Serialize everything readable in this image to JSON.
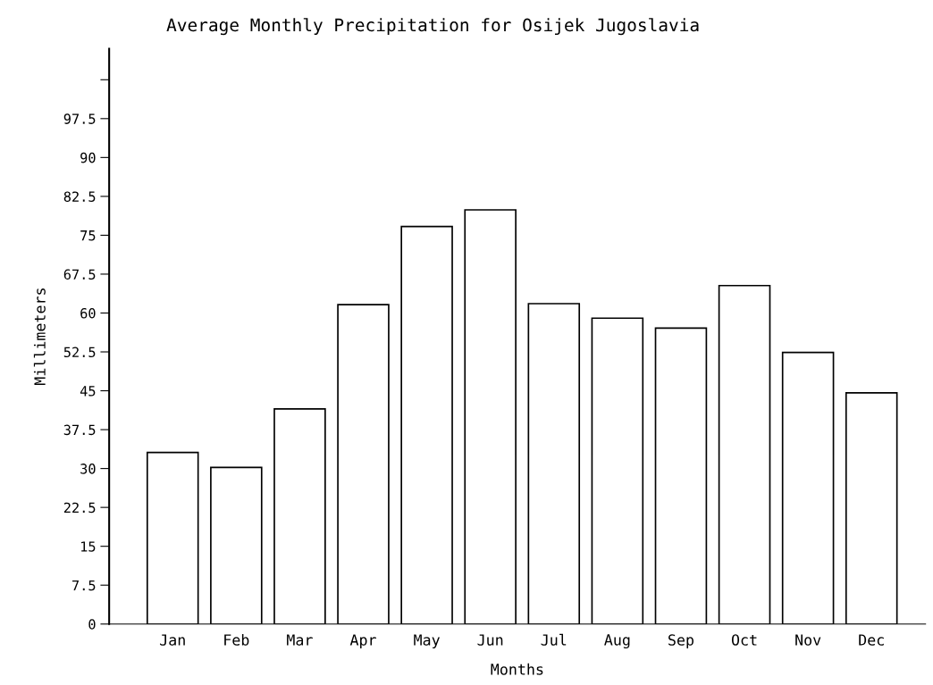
{
  "chart_data": {
    "type": "bar",
    "title": "Average Monthly Precipitation for Osijek Jugoslavia",
    "categories": [
      "Jan",
      "Feb",
      "Mar",
      "Apr",
      "May",
      "Jun",
      "Jul",
      "Aug",
      "Sep",
      "Oct",
      "Nov",
      "Dec"
    ],
    "values": [
      33.1,
      30.2,
      41.5,
      61.6,
      76.7,
      79.9,
      61.8,
      59.0,
      57.1,
      65.3,
      52.4,
      44.6
    ],
    "color": "#ffffff",
    "xlabel": "Months",
    "ylabel": "Millimeters",
    "ylim": [
      0,
      111
    ],
    "yticks": [
      0,
      7.5,
      15,
      22.5,
      30,
      37.5,
      45,
      52.5,
      60,
      67.5,
      75,
      82.5,
      90,
      97.5,
      {
        "value": 105,
        "label": null
      }
    ],
    "grid": false,
    "legend": false
  }
}
